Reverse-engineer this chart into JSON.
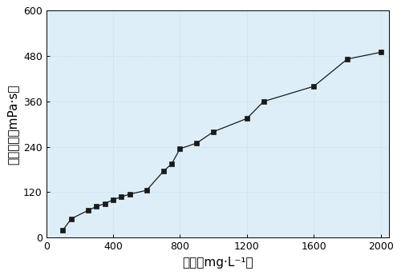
{
  "x": [
    100,
    150,
    250,
    300,
    350,
    400,
    450,
    500,
    600,
    700,
    750,
    800,
    900,
    1000,
    1200,
    1300,
    1600,
    1800,
    2000
  ],
  "y": [
    20,
    50,
    72,
    82,
    90,
    100,
    108,
    115,
    125,
    175,
    195,
    235,
    250,
    280,
    315,
    360,
    400,
    472,
    490
  ],
  "xlabel": "浓度（mg·L⁻¹）",
  "ylabel": "表观粘度（mPa·s）",
  "xlim": [
    0,
    2050
  ],
  "ylim": [
    0,
    600
  ],
  "xticks": [
    0,
    400,
    800,
    1200,
    1600,
    2000
  ],
  "yticks": [
    0,
    120,
    240,
    360,
    480,
    600
  ],
  "line_color": "#1a1a1a",
  "marker_color": "#1a1a1a",
  "marker": "s",
  "marker_size": 5,
  "line_width": 0.9,
  "grid_color": "#aacce0",
  "bg_color": "#ddeef8"
}
